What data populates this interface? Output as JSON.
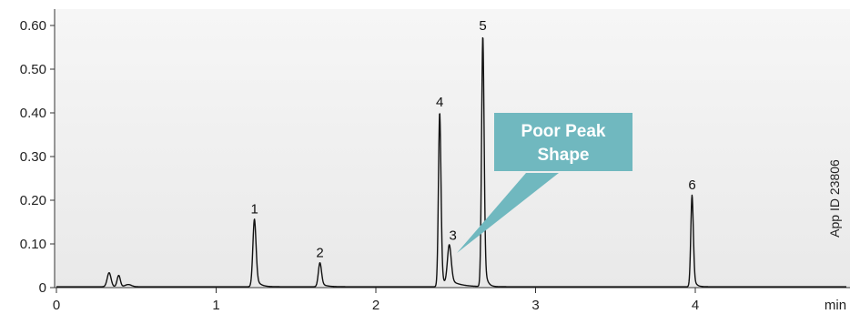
{
  "chart_data": {
    "type": "line",
    "xlabel": "min",
    "ylabel": "",
    "xlim": [
      0,
      4.5
    ],
    "ylim": [
      0,
      0.64
    ],
    "x_ticks": [
      0,
      1,
      2,
      3,
      4
    ],
    "y_ticks": [
      0,
      0.1,
      0.2,
      0.3,
      0.4,
      0.5,
      0.6
    ],
    "x_tick_labels": [
      "0",
      "1",
      "2",
      "3",
      "4"
    ],
    "y_tick_labels": [
      "0",
      "0.10",
      "0.20",
      "0.30",
      "0.40",
      "0.50",
      "0.60"
    ],
    "baseline": 0.002,
    "noise_peaks": [
      {
        "rt": 0.33,
        "height": 0.032,
        "width": 0.012
      },
      {
        "rt": 0.39,
        "height": 0.026,
        "width": 0.01
      },
      {
        "rt": 0.45,
        "height": 0.005,
        "width": 0.02
      }
    ],
    "peaks": [
      {
        "label": "1",
        "rt": 1.24,
        "height": 0.155,
        "width": 0.01,
        "tail": 0.025
      },
      {
        "label": "2",
        "rt": 1.65,
        "height": 0.055,
        "width": 0.01,
        "tail": 0.03
      },
      {
        "label": "4",
        "rt": 2.4,
        "height": 0.4,
        "width": 0.008,
        "tail": 0.015
      },
      {
        "label": "3",
        "rt": 2.46,
        "height": 0.095,
        "width": 0.012,
        "tail": 0.06
      },
      {
        "label": "5",
        "rt": 2.67,
        "height": 0.575,
        "width": 0.008,
        "tail": 0.015
      },
      {
        "label": "6",
        "rt": 3.98,
        "height": 0.21,
        "width": 0.008,
        "tail": 0.015
      }
    ],
    "series": [
      {
        "values": "computed from peaks"
      }
    ],
    "plot_background": "#efefef",
    "line_color": "#111111",
    "grid": false
  },
  "annotation": {
    "lines": [
      "Poor Peak",
      "Shape"
    ],
    "color": "#70b8bf",
    "points_to_peak": "3"
  },
  "app_id": "App ID 23806"
}
